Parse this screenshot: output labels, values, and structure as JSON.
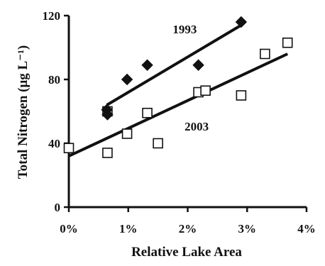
{
  "chart_data": {
    "type": "scatter",
    "xlabel": "Relative Lake Area",
    "ylabel": "Total Nitrogen (μg L⁻¹)",
    "xlim": [
      0,
      4
    ],
    "ylim": [
      0,
      120
    ],
    "x_ticks": [
      0,
      1,
      2,
      3,
      4
    ],
    "x_tick_labels": [
      "0%",
      "1%",
      "2%",
      "3%",
      "4%"
    ],
    "y_ticks": [
      0,
      40,
      80,
      120
    ],
    "y_tick_labels": [
      "0",
      "40",
      "80",
      "120"
    ],
    "grid": false,
    "legend": "none",
    "series": [
      {
        "name": "1993",
        "marker": "diamond",
        "fill": "#111111",
        "points": [
          {
            "x": 0.64,
            "y": 61
          },
          {
            "x": 0.65,
            "y": 58
          },
          {
            "x": 0.98,
            "y": 80
          },
          {
            "x": 1.32,
            "y": 89
          },
          {
            "x": 2.18,
            "y": 89
          },
          {
            "x": 2.9,
            "y": 116
          }
        ],
        "trendline": {
          "x0": 0.64,
          "y0": 64,
          "x1": 2.9,
          "y1": 114
        }
      },
      {
        "name": "2003",
        "marker": "square-open",
        "fill": "#ffffff",
        "points": [
          {
            "x": 0.0,
            "y": 37
          },
          {
            "x": 0.65,
            "y": 60
          },
          {
            "x": 0.65,
            "y": 34
          },
          {
            "x": 0.98,
            "y": 46
          },
          {
            "x": 1.32,
            "y": 59
          },
          {
            "x": 1.5,
            "y": 40
          },
          {
            "x": 2.18,
            "y": 72
          },
          {
            "x": 2.3,
            "y": 73
          },
          {
            "x": 2.9,
            "y": 70
          },
          {
            "x": 3.3,
            "y": 96
          },
          {
            "x": 3.68,
            "y": 103
          }
        ],
        "trendline": {
          "x0": 0.0,
          "y0": 32,
          "x1": 3.68,
          "y1": 96
        }
      }
    ],
    "annotations": [
      {
        "text": "1993",
        "x": 1.95,
        "y": 109
      },
      {
        "text": "2003",
        "x": 2.15,
        "y": 48
      }
    ]
  }
}
